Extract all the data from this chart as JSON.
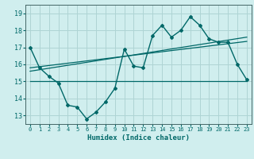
{
  "title": "",
  "xlabel": "Humidex (Indice chaleur)",
  "bg_color": "#d0eeee",
  "grid_color": "#aed4d4",
  "line_color": "#006868",
  "x_values": [
    0,
    1,
    2,
    3,
    4,
    5,
    6,
    7,
    8,
    9,
    10,
    11,
    12,
    13,
    14,
    15,
    16,
    17,
    18,
    19,
    20,
    21,
    22,
    23
  ],
  "main_line": [
    17.0,
    15.8,
    15.3,
    14.9,
    13.6,
    13.5,
    12.8,
    13.2,
    13.8,
    14.6,
    16.9,
    15.9,
    15.8,
    17.7,
    18.3,
    17.6,
    18.0,
    18.8,
    18.3,
    17.5,
    17.3,
    17.3,
    16.0,
    15.1
  ],
  "trend_line1_x": [
    0,
    23
  ],
  "trend_line1_y": [
    15.6,
    17.6
  ],
  "trend_line2_x": [
    0,
    23
  ],
  "trend_line2_y": [
    15.8,
    17.35
  ],
  "flat_line_x": [
    0,
    23
  ],
  "flat_line_y": [
    15.0,
    15.0
  ],
  "ylim": [
    12.5,
    19.5
  ],
  "yticks": [
    13,
    14,
    15,
    16,
    17,
    18,
    19
  ],
  "xlim": [
    -0.5,
    23.5
  ]
}
